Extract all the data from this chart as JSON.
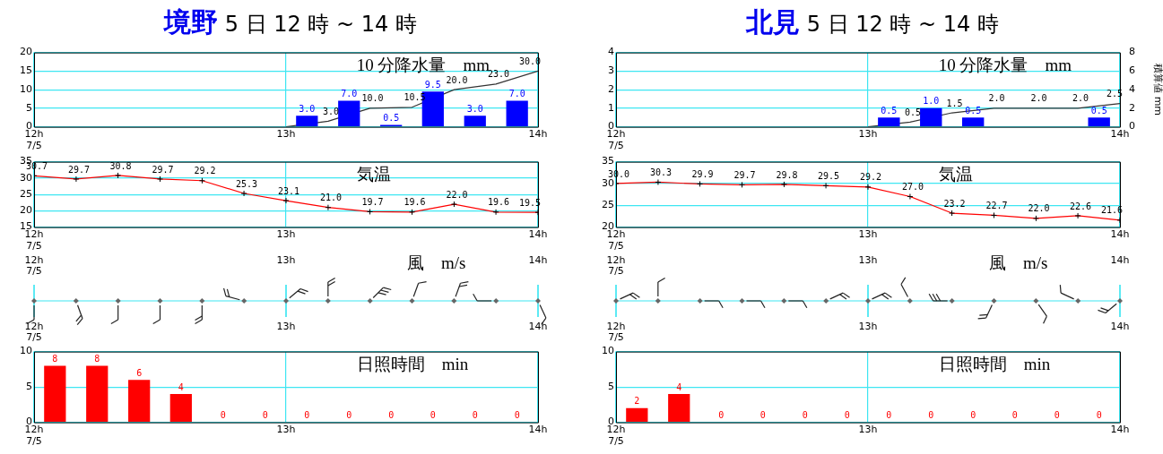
{
  "chart_data": [
    {
      "type": "bar",
      "title": "境野 5 日 12 時 ~ 14 時",
      "subtitle": "10 分降水量　mm",
      "xlim": [
        12,
        14
      ],
      "xticks": [
        {
          "value": 12,
          "label": "12h\n7/5"
        },
        {
          "value": 13,
          "label": "13h"
        },
        {
          "value": 14,
          "label": "14h"
        }
      ],
      "ylim": [
        0,
        20
      ],
      "yticks": [
        0,
        5,
        10,
        15,
        20
      ],
      "y2lim": [
        0,
        40
      ],
      "grid": true,
      "series": [
        {
          "color": "#0000ff",
          "x": [
            13.083,
            13.25,
            13.417,
            13.583,
            13.75,
            13.917
          ],
          "values": [
            3,
            7,
            0.5,
            9.5,
            3,
            7
          ],
          "value_labels": [
            "3.0",
            "7.0",
            "0.5",
            "9.5",
            "3.0",
            "7.0"
          ]
        },
        {
          "type": "line",
          "axis": "y2",
          "color": "#333333",
          "x": [
            13,
            13.167,
            13.333,
            13.5,
            13.667,
            13.833,
            14
          ],
          "values": [
            0,
            3,
            10,
            10.5,
            20,
            23,
            30
          ],
          "value_labels": [
            null,
            "3.0",
            "10.0",
            "10.5",
            "20.0",
            "23.0",
            "30.0"
          ]
        }
      ]
    },
    {
      "type": "line",
      "subtitle": "気温",
      "xlim": [
        12,
        14
      ],
      "xticks": [
        {
          "value": 12,
          "label": "12h\n7/5"
        },
        {
          "value": 13,
          "label": "13h"
        },
        {
          "value": 14,
          "label": "14h"
        }
      ],
      "ylim": [
        15,
        35
      ],
      "yticks": [
        15,
        20,
        25,
        30,
        35
      ],
      "grid": true,
      "marker": "cross",
      "series": [
        {
          "color": "#ff0000",
          "x": [
            12,
            12.167,
            12.333,
            12.5,
            12.667,
            12.833,
            13,
            13.167,
            13.333,
            13.5,
            13.667,
            13.833,
            14
          ],
          "values": [
            30.7,
            29.7,
            30.8,
            29.7,
            29.2,
            25.3,
            23.1,
            21.0,
            19.7,
            19.6,
            22.0,
            19.6,
            19.5
          ],
          "value_labels": [
            "30.7",
            "29.7",
            "30.8",
            "29.7",
            "29.2",
            "25.3",
            "23.1",
            "21.0",
            "19.7",
            "19.6",
            "22.0",
            "19.6",
            "19.5"
          ]
        }
      ]
    },
    {
      "type": "other",
      "subtitle": "風　m/s",
      "annotations": [
        "12h\n7/5",
        "13h",
        "14h",
        "12h\n7/5",
        "13h",
        "14h"
      ]
    },
    {
      "type": "bar",
      "subtitle": "日照時間　min",
      "xlim": [
        12,
        14
      ],
      "xticks": [
        {
          "value": 12,
          "label": "12h\n7/5"
        },
        {
          "value": 13,
          "label": "13h"
        },
        {
          "value": 14,
          "label": "14h"
        }
      ],
      "ylim": [
        0,
        10
      ],
      "yticks": [
        0,
        5,
        10
      ],
      "grid": true,
      "data_labels": true,
      "color": "#ff0000",
      "x": [
        12.083,
        12.25,
        12.417,
        12.583,
        12.75,
        12.917,
        13.083,
        13.25,
        13.417,
        13.583,
        13.75,
        13.917
      ],
      "values": [
        8,
        8,
        6,
        4,
        0,
        0,
        0,
        0,
        0,
        0,
        0,
        0
      ]
    },
    {
      "type": "bar",
      "title": "北見 5 日 12 時 ~ 14 時",
      "subtitle": "10 分降水量　mm",
      "xlim": [
        12,
        14
      ],
      "xticks": [
        {
          "value": 12,
          "label": "12h\n7/5"
        },
        {
          "value": 13,
          "label": "13h"
        },
        {
          "value": 14,
          "label": "14h"
        }
      ],
      "ylim": [
        0,
        4
      ],
      "yticks": [
        0,
        1,
        2,
        3,
        4
      ],
      "y2lim": [
        0,
        8
      ],
      "y2ticks": [
        0,
        2,
        4,
        6,
        8
      ],
      "y2label": "積算値 mm",
      "grid": true,
      "series": [
        {
          "color": "#0000ff",
          "x": [
            13.083,
            13.25,
            13.417,
            13.917
          ],
          "values": [
            0.5,
            1,
            0.5,
            0.5
          ],
          "value_labels": [
            "0.5",
            "1.0",
            "0.5",
            "0.5"
          ]
        },
        {
          "type": "line",
          "axis": "y2",
          "color": "#333333",
          "x": [
            13,
            13.167,
            13.333,
            13.5,
            13.667,
            13.833,
            14
          ],
          "values": [
            0,
            0.5,
            1.5,
            2,
            2,
            2,
            2.5
          ],
          "value_labels": [
            null,
            "0.5",
            "1.5",
            "2.0",
            "2.0",
            "2.0",
            "2.5"
          ]
        }
      ]
    },
    {
      "type": "line",
      "subtitle": "気温",
      "xlim": [
        12,
        14
      ],
      "xticks": [
        {
          "value": 12,
          "label": "12h\n7/5"
        },
        {
          "value": 13,
          "label": "13h"
        },
        {
          "value": 14,
          "label": "14h"
        }
      ],
      "ylim": [
        20,
        35
      ],
      "yticks": [
        20,
        25,
        30,
        35
      ],
      "grid": true,
      "marker": "cross",
      "series": [
        {
          "color": "#ff0000",
          "x": [
            12,
            12.167,
            12.333,
            12.5,
            12.667,
            12.833,
            13,
            13.167,
            13.333,
            13.5,
            13.667,
            13.833,
            14
          ],
          "values": [
            30.0,
            30.3,
            29.9,
            29.7,
            29.8,
            29.5,
            29.2,
            27.0,
            23.2,
            22.7,
            22.0,
            22.6,
            21.6
          ],
          "value_labels": [
            "30.0",
            "30.3",
            "29.9",
            "29.7",
            "29.8",
            "29.5",
            "29.2",
            "27.0",
            "23.2",
            "22.7",
            "22.0",
            "22.6",
            "21.6"
          ]
        }
      ]
    },
    {
      "type": "other",
      "subtitle": "風　m/s",
      "annotations": [
        "12h\n7/5",
        "13h",
        "14h",
        "12h\n7/5",
        "13h",
        "14h"
      ]
    },
    {
      "type": "bar",
      "subtitle": "日照時間　min",
      "xlim": [
        12,
        14
      ],
      "xticks": [
        {
          "value": 12,
          "label": "12h\n7/5"
        },
        {
          "value": 13,
          "label": "13h"
        },
        {
          "value": 14,
          "label": "14h"
        }
      ],
      "ylim": [
        0,
        10
      ],
      "yticks": [
        0,
        5,
        10
      ],
      "grid": true,
      "data_labels": true,
      "color": "#ff0000",
      "x": [
        12.083,
        12.25,
        12.417,
        12.583,
        12.75,
        12.917,
        13.083,
        13.25,
        13.417,
        13.583,
        13.75,
        13.917
      ],
      "values": [
        2,
        4,
        0,
        0,
        0,
        0,
        0,
        0,
        0,
        0,
        0,
        0
      ]
    }
  ]
}
